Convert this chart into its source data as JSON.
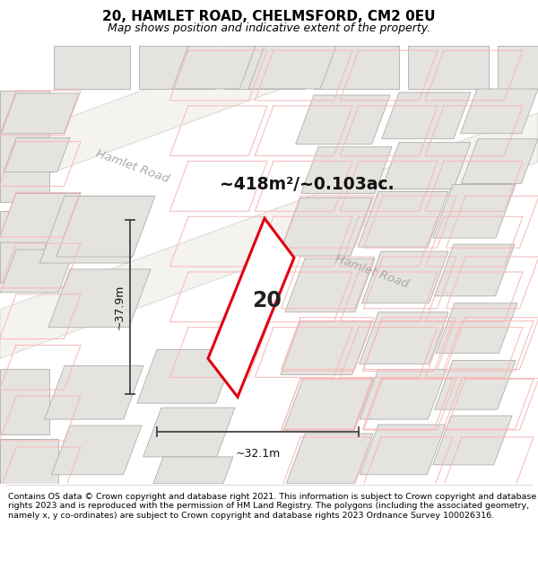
{
  "title": "20, HAMLET ROAD, CHELMSFORD, CM2 0EU",
  "subtitle": "Map shows position and indicative extent of the property.",
  "footer": "Contains OS data © Crown copyright and database right 2021. This information is subject to Crown copyright and database rights 2023 and is reproduced with the permission of HM Land Registry. The polygons (including the associated geometry, namely x, y co-ordinates) are subject to Crown copyright and database rights 2023 Ordnance Survey 100026316.",
  "area_label": "~418m²/~0.103ac.",
  "property_number": "20",
  "width_label": "~32.1m",
  "height_label": "~37.9m",
  "road_label_upper": "Hamlet Road",
  "road_label_lower": "Hamlet Road",
  "map_bg": "#f2f0ed",
  "building_fill": "#e8e6e2",
  "building_stroke": "#aaaaaa",
  "property_fill": "#ffffff",
  "property_stroke": "#e00010",
  "plot_outline_color": "#f0a0a0",
  "road_fill": "#ffffff",
  "dim_line_color": "#444444",
  "title_fontsize": 11,
  "subtitle_fontsize": 9,
  "footer_fontsize": 6.8
}
